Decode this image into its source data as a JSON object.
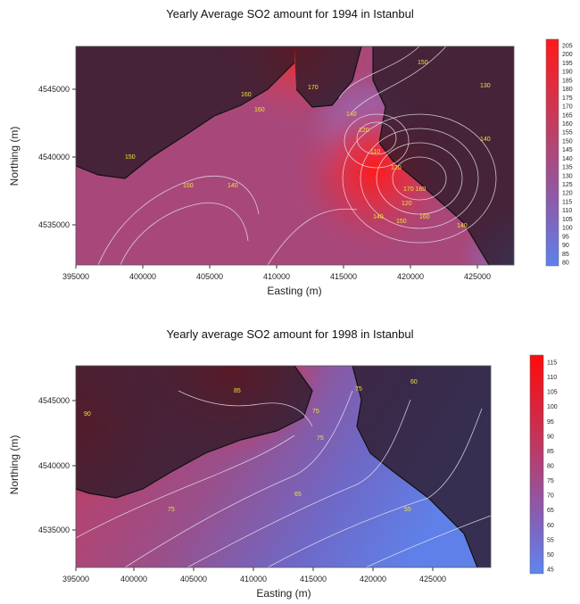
{
  "maps": [
    {
      "title": "Yearly Average SO2 amount for 1994 in Istanbul",
      "xlabel": "Easting (m)",
      "ylabel": "Northing (m)",
      "x_ticks": [
        "395000",
        "400000",
        "405000",
        "410000",
        "415000",
        "420000",
        "425000"
      ],
      "y_ticks": [
        "4545000",
        "4540000",
        "4535000"
      ],
      "colorbar_ticks": [
        "205",
        "200",
        "195",
        "190",
        "185",
        "180",
        "175",
        "170",
        "165",
        "160",
        "155",
        "150",
        "145",
        "140",
        "135",
        "130",
        "125",
        "120",
        "115",
        "110",
        "105",
        "100",
        "95",
        "90",
        "85",
        "80"
      ],
      "colorbar_colors": [
        "#ff1a1a",
        "#5d80ee"
      ],
      "contour_labels": [
        "150",
        "170",
        "140",
        "120",
        "110",
        "120",
        "140",
        "150",
        "150",
        "140",
        "120",
        "160",
        "140",
        "150",
        "160",
        "170 160",
        "160",
        "130",
        "140"
      ]
    },
    {
      "title": "Yearly average SO2 amount for 1998 in Istanbul",
      "xlabel": "Easting (m)",
      "ylabel": "Northing (m)",
      "x_ticks": [
        "395000",
        "400000",
        "405000",
        "410000",
        "415000",
        "420000",
        "425000"
      ],
      "y_ticks": [
        "4545000",
        "4540000",
        "4535000"
      ],
      "colorbar_ticks": [
        "115",
        "110",
        "105",
        "100",
        "95",
        "90",
        "85",
        "80",
        "75",
        "70",
        "65",
        "60",
        "55",
        "50",
        "45"
      ],
      "colorbar_colors": [
        "#ff0a0a",
        "#5d86ee"
      ],
      "contour_labels": [
        "90",
        "85",
        "75",
        "75",
        "75",
        "65",
        "75",
        "55",
        "60"
      ]
    }
  ]
}
